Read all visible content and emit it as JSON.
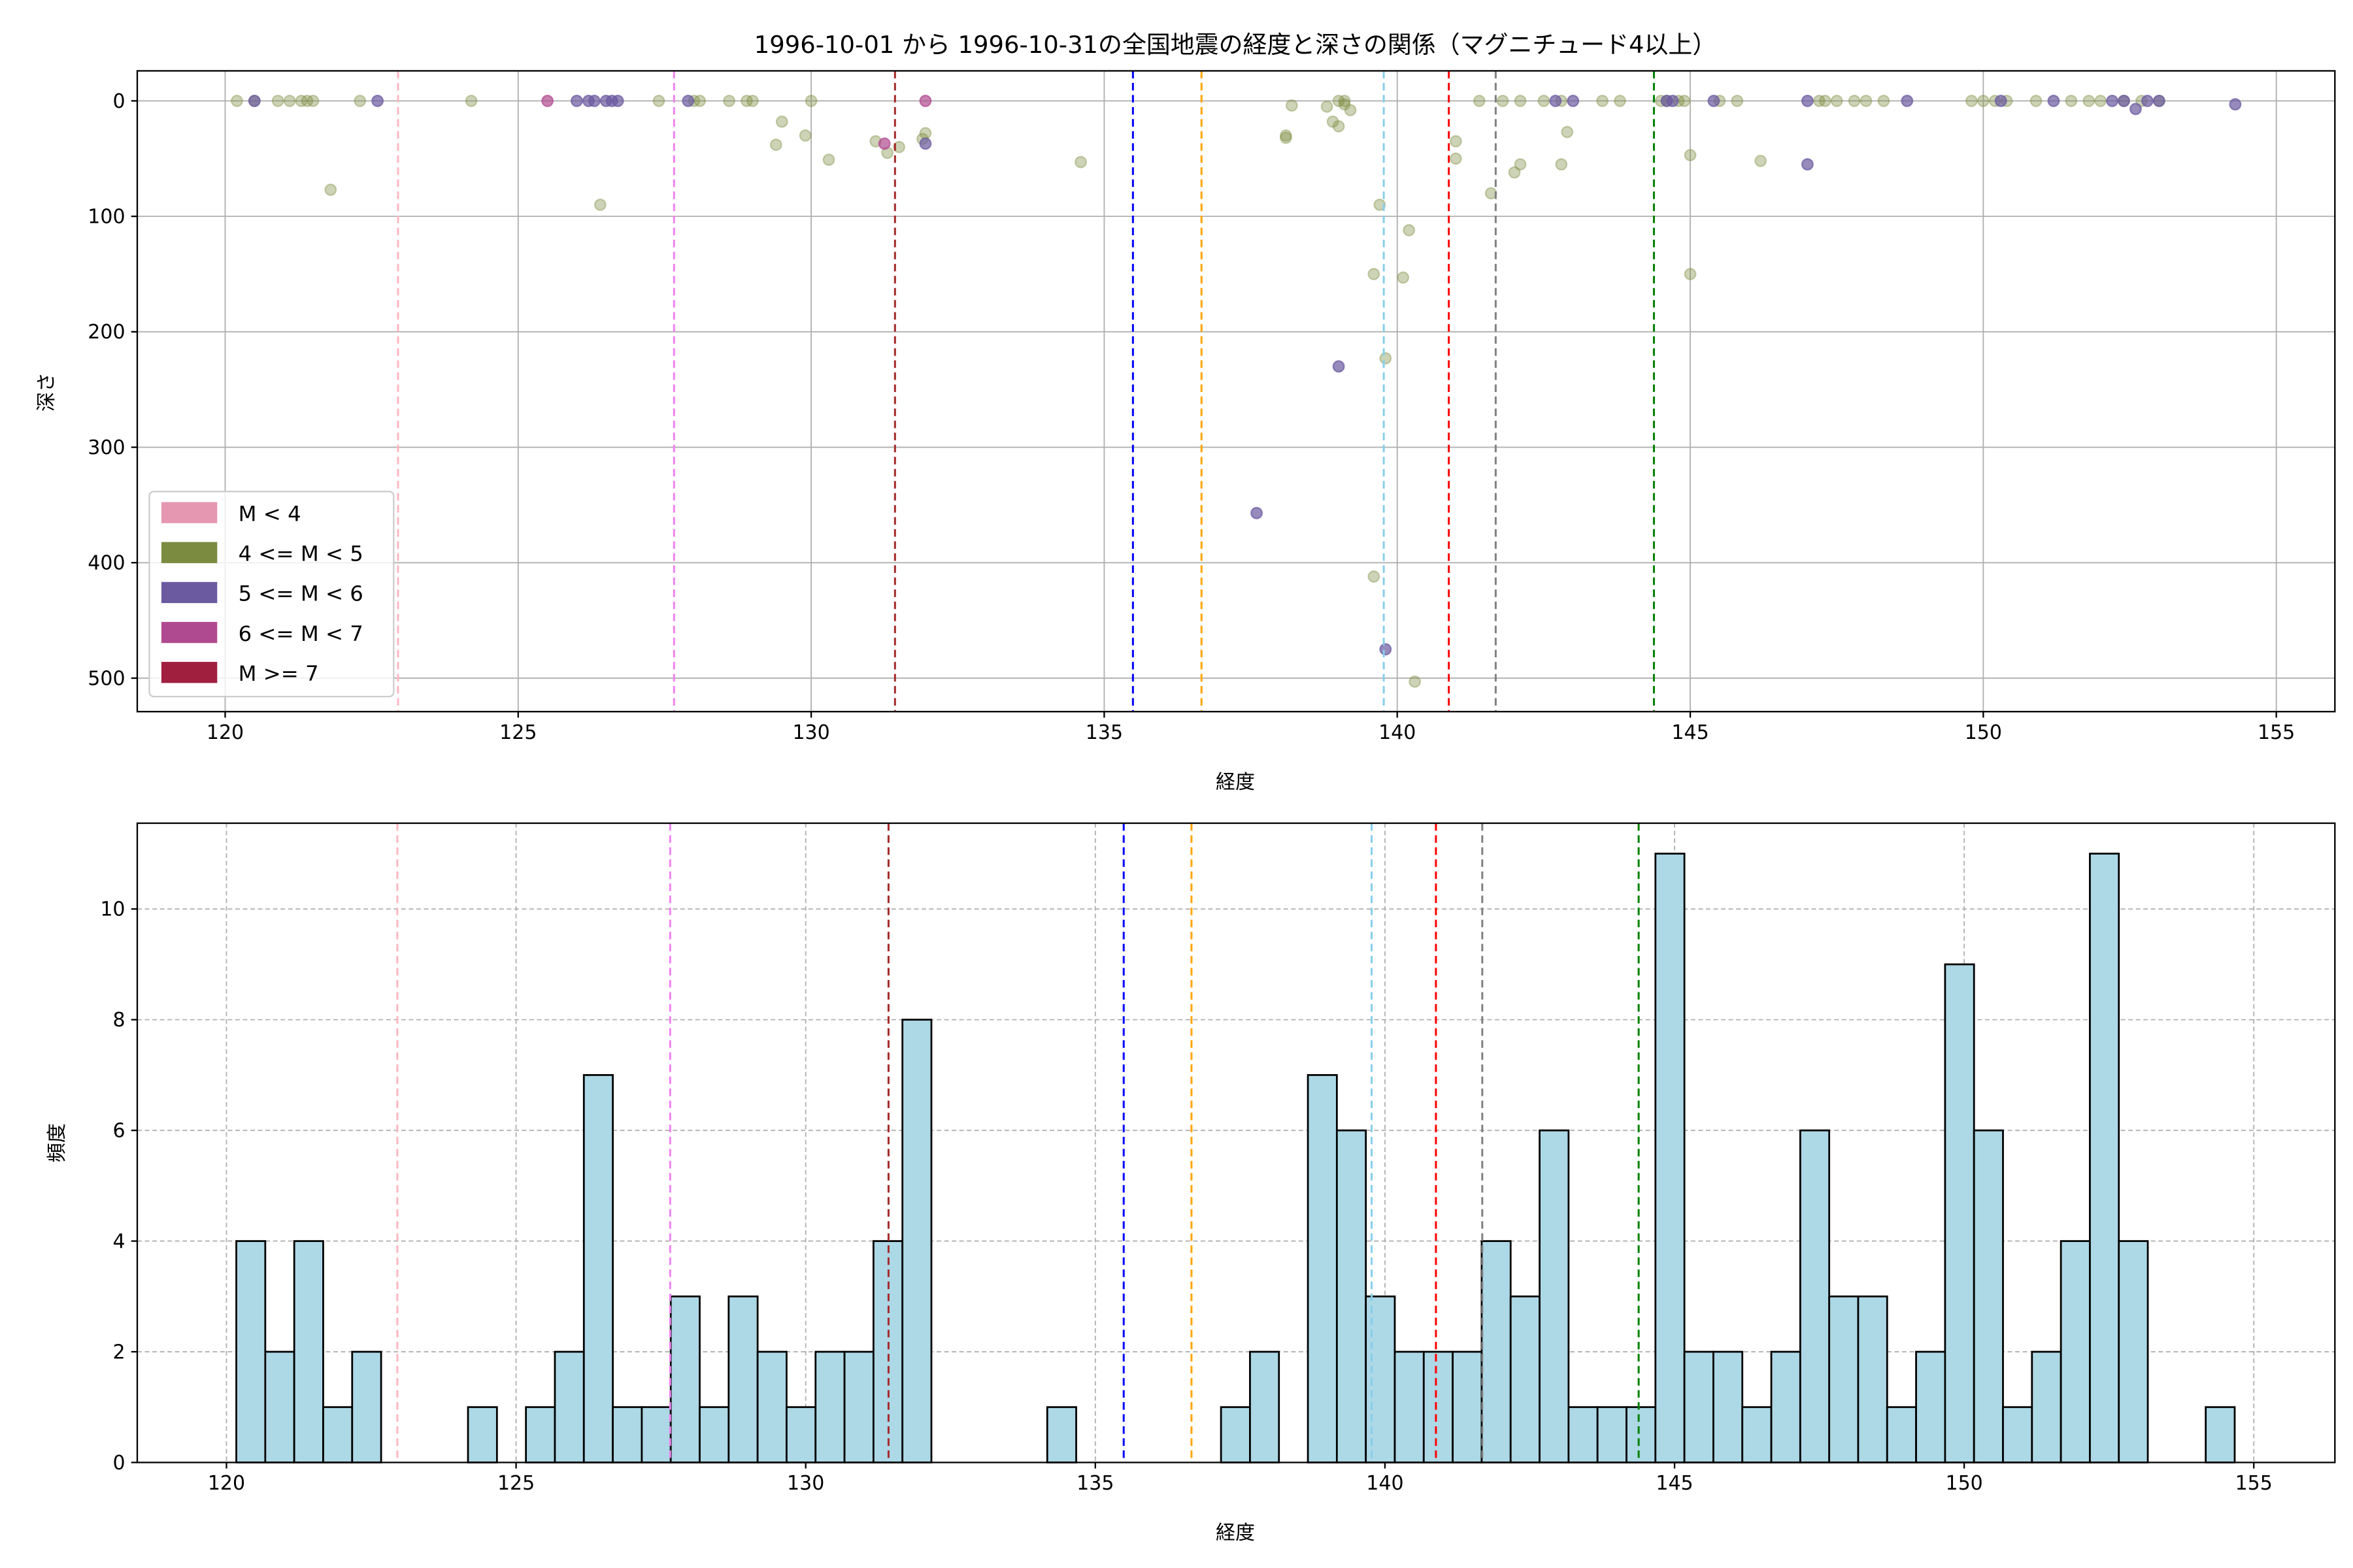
{
  "chart_data": [
    {
      "type": "scatter",
      "title": "1996-10-01 から 1996-10-31の全国地震の経度と深さの関係（マグニチュード4以上）",
      "xlabel": "経度",
      "ylabel": "深さ",
      "xlim": [
        118.5,
        156.0
      ],
      "ylim": [
        529,
        -26
      ],
      "y_inverted": true,
      "xticks": [
        120,
        125,
        130,
        135,
        140,
        145,
        150,
        155
      ],
      "yticks": [
        0,
        100,
        200,
        300,
        400,
        500
      ],
      "grid": true,
      "legend_placement": "lower-left",
      "legend": [
        {
          "label": "M < 4",
          "color": "#e597b2"
        },
        {
          "label": "4 <= M < 5",
          "color": "#7b8b40"
        },
        {
          "label": "5 <= M < 6",
          "color": "#6b5aa0"
        },
        {
          "label": "6 <= M < 7",
          "color": "#b04a90"
        },
        {
          "label": "M >= 7",
          "color": "#a01f3f"
        }
      ],
      "series": [
        {
          "class": "4 <= M < 5",
          "color": "#7b8b40",
          "points": [
            [
              120.2,
              0
            ],
            [
              120.5,
              0
            ],
            [
              120.9,
              0
            ],
            [
              121.1,
              0
            ],
            [
              121.3,
              0
            ],
            [
              121.4,
              0
            ],
            [
              121.5,
              0
            ],
            [
              122.3,
              0
            ],
            [
              124.2,
              0
            ],
            [
              127.4,
              0
            ],
            [
              128.0,
              0
            ],
            [
              128.1,
              0
            ],
            [
              128.6,
              0
            ],
            [
              128.9,
              0
            ],
            [
              129.0,
              0
            ],
            [
              130.0,
              0
            ],
            [
              121.8,
              77
            ],
            [
              126.4,
              90
            ],
            [
              129.4,
              38
            ],
            [
              129.5,
              18
            ],
            [
              129.9,
              30
            ],
            [
              130.3,
              51
            ],
            [
              131.1,
              35
            ],
            [
              131.3,
              45
            ],
            [
              131.5,
              40
            ],
            [
              131.95,
              28
            ],
            [
              131.9,
              33
            ],
            [
              134.6,
              53
            ],
            [
              138.1,
              30
            ],
            [
              138.1,
              32
            ],
            [
              138.2,
              4
            ],
            [
              138.9,
              18
            ],
            [
              139.0,
              22
            ],
            [
              138.8,
              5
            ],
            [
              139.1,
              3
            ],
            [
              139.2,
              8
            ],
            [
              139.0,
              0
            ],
            [
              139.1,
              0
            ],
            [
              139.7,
              90
            ],
            [
              140.2,
              112
            ],
            [
              139.6,
              150
            ],
            [
              140.1,
              153
            ],
            [
              139.8,
              223
            ],
            [
              139.6,
              412
            ],
            [
              140.3,
              503
            ],
            [
              141.0,
              35
            ],
            [
              141.0,
              50
            ],
            [
              141.6,
              80
            ],
            [
              142.0,
              62
            ],
            [
              142.1,
              55
            ],
            [
              142.8,
              55
            ],
            [
              142.9,
              27
            ],
            [
              141.4,
              0
            ],
            [
              141.8,
              0
            ],
            [
              142.1,
              0
            ],
            [
              142.5,
              0
            ],
            [
              142.8,
              0
            ],
            [
              143.5,
              0
            ],
            [
              143.8,
              0
            ],
            [
              144.5,
              0
            ],
            [
              144.6,
              0
            ],
            [
              144.8,
              0
            ],
            [
              144.9,
              0
            ],
            [
              145.5,
              0
            ],
            [
              145.8,
              0
            ],
            [
              145.0,
              47
            ],
            [
              145.0,
              150
            ],
            [
              146.2,
              52
            ],
            [
              147.2,
              0
            ],
            [
              147.3,
              0
            ],
            [
              147.5,
              0
            ],
            [
              147.8,
              0
            ],
            [
              148.0,
              0
            ],
            [
              148.3,
              0
            ],
            [
              149.8,
              0
            ],
            [
              150.0,
              0
            ],
            [
              150.2,
              0
            ],
            [
              150.4,
              0
            ],
            [
              150.9,
              0
            ],
            [
              151.5,
              0
            ],
            [
              151.8,
              0
            ],
            [
              152.0,
              0
            ],
            [
              152.4,
              0
            ],
            [
              152.7,
              0
            ],
            [
              153.0,
              0
            ]
          ]
        },
        {
          "class": "5 <= M < 6",
          "color": "#6b5aa0",
          "points": [
            [
              120.5,
              0
            ],
            [
              122.6,
              0
            ],
            [
              126.0,
              0
            ],
            [
              126.2,
              0
            ],
            [
              126.3,
              0
            ],
            [
              126.5,
              0
            ],
            [
              126.6,
              0
            ],
            [
              126.7,
              0
            ],
            [
              127.9,
              0
            ],
            [
              131.95,
              37
            ],
            [
              139.0,
              230
            ],
            [
              137.6,
              357
            ],
            [
              139.8,
              475
            ],
            [
              142.7,
              0
            ],
            [
              143.0,
              0
            ],
            [
              144.6,
              0
            ],
            [
              144.7,
              0
            ],
            [
              145.4,
              0
            ],
            [
              147.0,
              0
            ],
            [
              147.0,
              55
            ],
            [
              148.7,
              0
            ],
            [
              150.3,
              0
            ],
            [
              151.2,
              0
            ],
            [
              152.2,
              0
            ],
            [
              152.4,
              0
            ],
            [
              152.6,
              7
            ],
            [
              152.8,
              0
            ],
            [
              153.0,
              0
            ],
            [
              154.3,
              3
            ]
          ]
        },
        {
          "class": "6 <= M < 7",
          "color": "#b04a90",
          "points": [
            [
              125.5,
              0
            ],
            [
              131.95,
              0
            ],
            [
              131.25,
              37
            ]
          ]
        }
      ],
      "reference_lines": [
        {
          "x": 122.95,
          "color": "#ffb6c1"
        },
        {
          "x": 127.66,
          "color": "#ee82ee"
        },
        {
          "x": 131.43,
          "color": "#a52a2a"
        },
        {
          "x": 135.49,
          "color": "#0000ff"
        },
        {
          "x": 136.66,
          "color": "#ffa500"
        },
        {
          "x": 139.77,
          "color": "#87ceeb"
        },
        {
          "x": 140.88,
          "color": "#ff0000"
        },
        {
          "x": 141.68,
          "color": "#808080"
        },
        {
          "x": 144.38,
          "color": "#008000"
        }
      ]
    },
    {
      "type": "bar",
      "subtype": "histogram",
      "xlabel": "経度",
      "ylabel": "頻度",
      "xlim": [
        118.46,
        156.4
      ],
      "ylim": [
        0,
        11.55
      ],
      "xticks": [
        120,
        125,
        130,
        135,
        140,
        145,
        150,
        155
      ],
      "yticks": [
        0,
        2,
        4,
        6,
        8,
        10
      ],
      "grid": true,
      "bar_color": "#add8e6",
      "edge_color": "#000000",
      "bin_start": 120.17,
      "bin_width": 0.5,
      "counts": [
        4,
        2,
        4,
        1,
        2,
        0,
        0,
        0,
        1,
        0,
        1,
        2,
        7,
        1,
        1,
        3,
        1,
        3,
        2,
        1,
        2,
        2,
        4,
        8,
        0,
        0,
        0,
        0,
        1,
        0,
        0,
        0,
        0,
        0,
        1,
        2,
        0,
        7,
        6,
        3,
        2,
        2,
        2,
        4,
        3,
        6,
        1,
        1,
        1,
        11,
        2,
        2,
        1,
        2,
        6,
        3,
        3,
        1,
        2,
        9,
        6,
        1,
        2,
        4,
        11,
        4,
        0,
        0,
        1
      ],
      "reference_lines": [
        {
          "x": 122.95,
          "color": "#ffb6c1"
        },
        {
          "x": 127.66,
          "color": "#ee82ee"
        },
        {
          "x": 131.43,
          "color": "#a52a2a"
        },
        {
          "x": 135.49,
          "color": "#0000ff"
        },
        {
          "x": 136.66,
          "color": "#ffa500"
        },
        {
          "x": 139.77,
          "color": "#87ceeb"
        },
        {
          "x": 140.88,
          "color": "#ff0000"
        },
        {
          "x": 141.68,
          "color": "#808080"
        },
        {
          "x": 144.38,
          "color": "#008000"
        }
      ]
    }
  ]
}
